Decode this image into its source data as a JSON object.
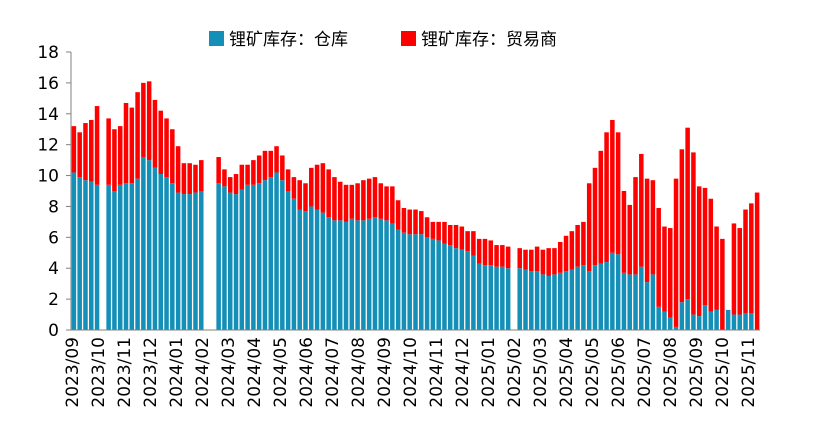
{
  "chart_data": {
    "type": "bar",
    "stacked": true,
    "title": "",
    "xlabel": "",
    "ylabel": "",
    "ylim": [
      0,
      18
    ],
    "yticks": [
      0,
      2,
      4,
      6,
      8,
      10,
      12,
      14,
      16,
      18
    ],
    "grid": false,
    "legend_position": "top-center",
    "colors": {
      "warehouse": "#1490B8",
      "trader": "#FF0000",
      "axis": "#808080"
    },
    "x_tick_labels": [
      "2023/09",
      "2023/10",
      "2023/11",
      "2023/12",
      "2024/01",
      "2024/02",
      "2024/03",
      "2024/04",
      "2024/05",
      "2024/06",
      "2024/07",
      "2024/08",
      "2024/09",
      "2024/10",
      "2024/11",
      "2024/12",
      "2025/01",
      "2025/02",
      "2025/03",
      "2025/04",
      "2025/05",
      "2025/06",
      "2025/07",
      "2025/08",
      "2025/09",
      "2025/10",
      "2025/11"
    ],
    "series": [
      {
        "name": "锂矿库存：仓库",
        "color": "#1490B8",
        "values": [
          10.2,
          9.9,
          9.7,
          9.6,
          9.4,
          null,
          9.4,
          9.0,
          9.4,
          9.5,
          9.5,
          9.8,
          11.2,
          11.0,
          10.5,
          10.1,
          9.9,
          9.5,
          8.9,
          8.8,
          8.8,
          8.9,
          9.0,
          null,
          null,
          9.5,
          9.3,
          8.9,
          8.8,
          9.1,
          9.4,
          9.4,
          9.5,
          9.7,
          9.9,
          10.2,
          9.7,
          9.0,
          8.5,
          7.8,
          7.7,
          8.0,
          7.8,
          7.6,
          7.3,
          7.1,
          7.1,
          7.0,
          7.2,
          7.1,
          7.1,
          7.2,
          7.3,
          7.2,
          7.1,
          6.9,
          6.5,
          6.3,
          6.2,
          6.2,
          6.2,
          6.0,
          5.9,
          5.8,
          5.6,
          5.5,
          5.3,
          5.2,
          5.1,
          4.8,
          4.3,
          4.2,
          4.2,
          4.1,
          4.1,
          4.0,
          null,
          4.0,
          3.9,
          3.8,
          3.8,
          3.6,
          3.5,
          3.6,
          3.7,
          3.8,
          3.9,
          4.1,
          4.2,
          3.8,
          4.2,
          4.3,
          4.4,
          5.0,
          4.9,
          3.7,
          3.6,
          3.6,
          4.1,
          3.1,
          3.6,
          1.5,
          1.2,
          0.8,
          0.2,
          1.8,
          2.0,
          1.0,
          0.9,
          1.6,
          1.2,
          1.3,
          null,
          1.3,
          1.0,
          1.0,
          1.1,
          1.1,
          0.0
        ]
      },
      {
        "name": "锂矿库存：贸易商",
        "color": "#FF0000",
        "values": [
          3.0,
          2.9,
          3.7,
          4.0,
          5.1,
          null,
          4.3,
          4.0,
          3.8,
          5.2,
          4.9,
          5.6,
          4.8,
          5.1,
          4.4,
          4.1,
          3.8,
          3.5,
          3.0,
          2.0,
          2.0,
          1.8,
          2.0,
          null,
          null,
          1.7,
          1.1,
          1.0,
          1.3,
          1.6,
          1.3,
          1.6,
          1.8,
          1.9,
          1.7,
          1.7,
          1.6,
          1.4,
          1.4,
          1.9,
          1.8,
          2.5,
          2.9,
          3.2,
          3.1,
          2.8,
          2.5,
          2.4,
          2.2,
          2.4,
          2.6,
          2.6,
          2.6,
          2.3,
          2.2,
          2.4,
          1.9,
          1.6,
          1.6,
          1.6,
          1.5,
          1.3,
          1.1,
          1.2,
          1.4,
          1.3,
          1.5,
          1.5,
          1.3,
          1.6,
          1.6,
          1.7,
          1.6,
          1.4,
          1.4,
          1.4,
          null,
          1.3,
          1.3,
          1.4,
          1.6,
          1.6,
          1.8,
          1.7,
          2.0,
          2.3,
          2.5,
          2.7,
          2.8,
          5.7,
          6.3,
          7.3,
          8.4,
          8.6,
          7.9,
          5.3,
          4.5,
          6.3,
          7.3,
          6.7,
          6.1,
          6.4,
          5.5,
          5.8,
          9.6,
          9.9,
          11.1,
          10.5,
          8.4,
          7.6,
          7.3,
          5.4,
          5.9,
          null,
          5.9,
          5.6,
          6.7,
          7.1,
          8.9,
          8.6
        ]
      }
    ]
  }
}
